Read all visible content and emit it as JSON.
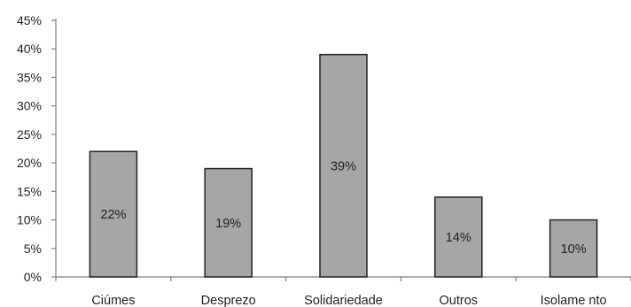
{
  "chart_data": {
    "type": "bar",
    "title": "",
    "xlabel": "",
    "ylabel": "",
    "categories": [
      "Ciúmes",
      "Desprezo",
      "Solidariedade",
      "Outros",
      "Isolame nto"
    ],
    "values": [
      22,
      19,
      39,
      14,
      10
    ],
    "data_labels": [
      "22%",
      "19%",
      "39%",
      "14%",
      "10%"
    ],
    "ylim": [
      0,
      45
    ],
    "yticks": [
      0,
      5,
      10,
      15,
      20,
      25,
      30,
      35,
      40,
      45
    ],
    "ytick_labels": [
      "0%",
      "5%",
      "10%",
      "15%",
      "20%",
      "25%",
      "30%",
      "35%",
      "40%",
      "45%"
    ],
    "grid": false,
    "legend": "none",
    "colors": {
      "bar_fill": "#a6a6a6",
      "bar_stroke": "#222222",
      "axis": "#7f7f7f",
      "text": "#222222"
    }
  }
}
